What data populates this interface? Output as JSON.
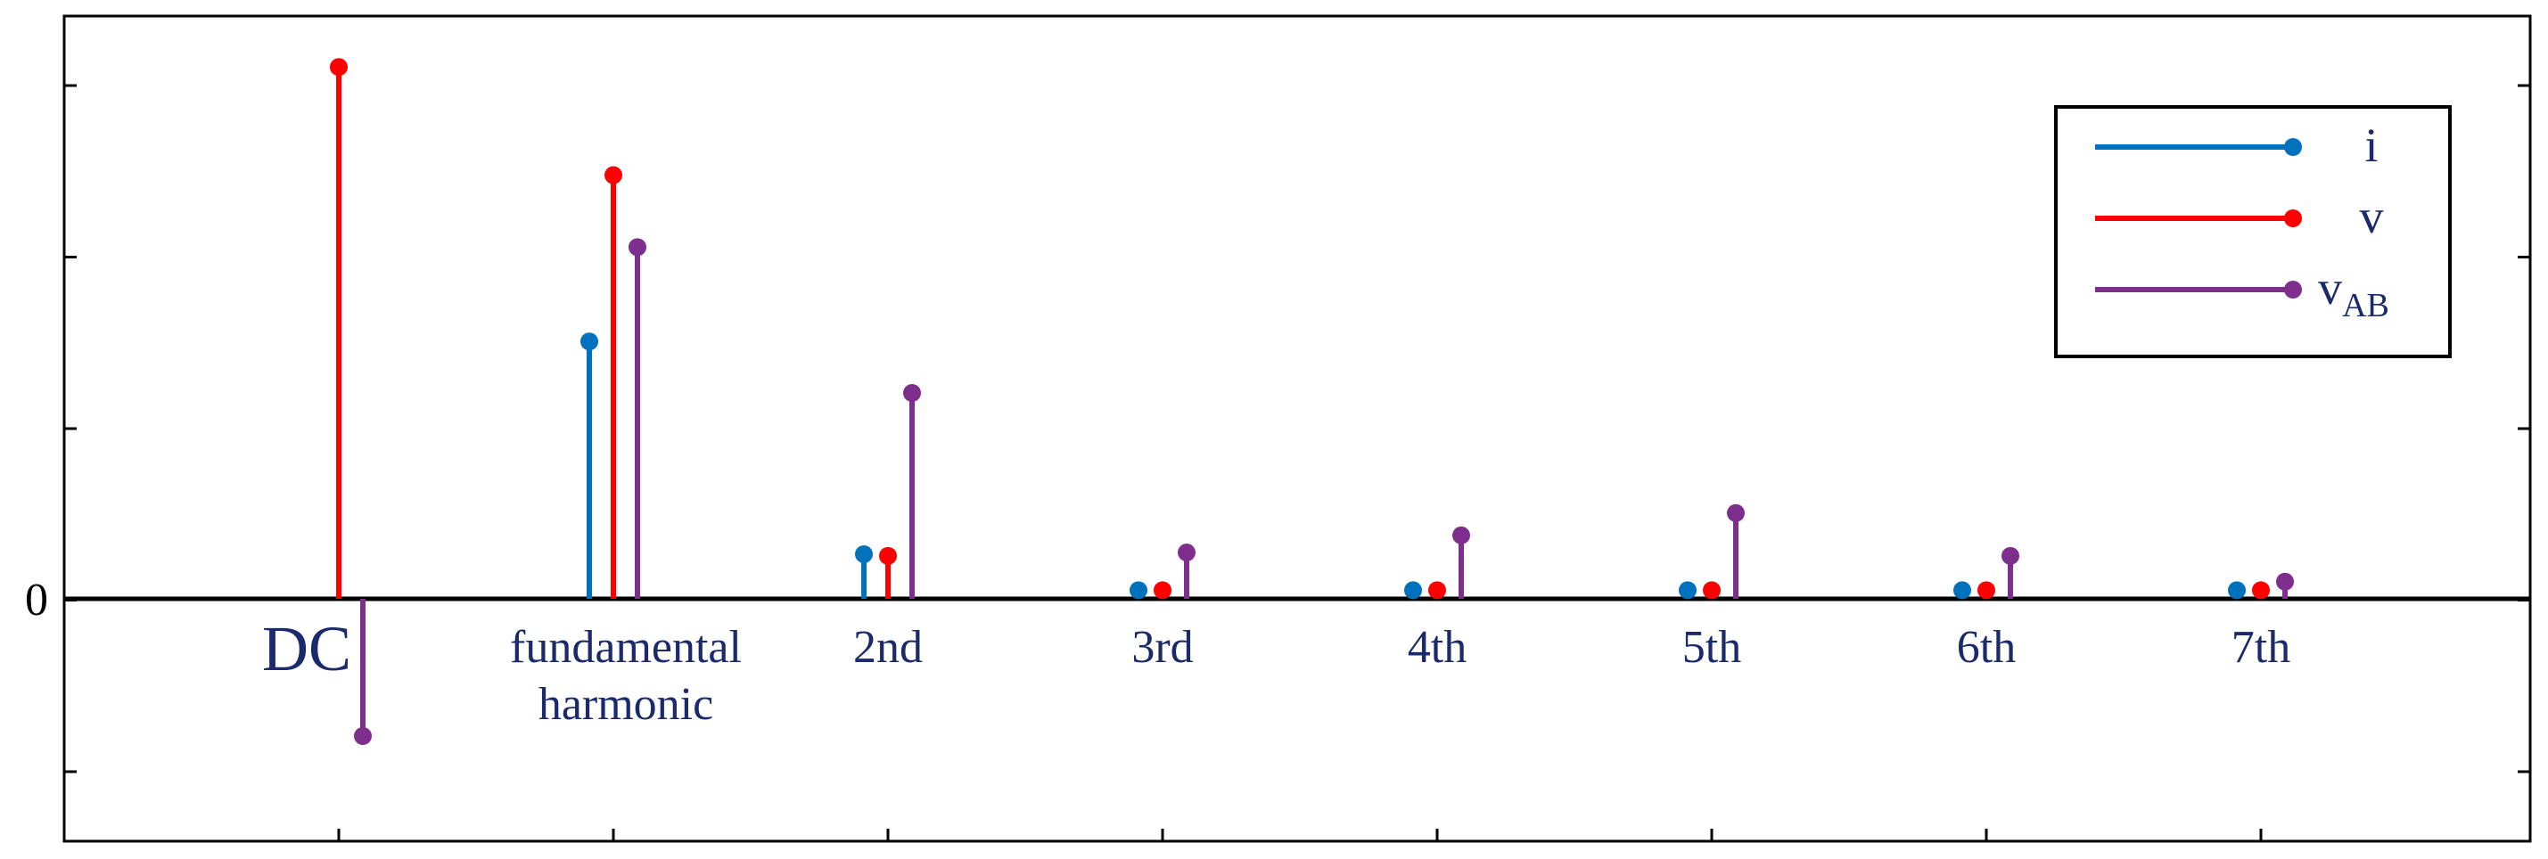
{
  "chart_data": {
    "type": "stem",
    "categories": [
      "DC",
      "fundamental\nharmonic",
      "2nd",
      "3rd",
      "4th",
      "5th",
      "6th",
      "7th"
    ],
    "y_zero_label": "0",
    "ylim": [
      -0.7,
      2.75
    ],
    "series": [
      {
        "name": "i",
        "color": "#0072BD",
        "values": [
          null,
          1.5,
          0.26,
          0.05,
          0.05,
          0.05,
          0.05,
          0.05
        ]
      },
      {
        "name": "v",
        "color": "#FF0000",
        "values": [
          3.1,
          2.47,
          0.25,
          0.05,
          0.05,
          0.05,
          0.05,
          0.05
        ]
      },
      {
        "name": "v",
        "subscript": "AB",
        "color": "#7E2F8E",
        "values": [
          -0.8,
          2.05,
          1.2,
          0.27,
          0.37,
          0.5,
          0.25,
          0.1
        ]
      }
    ],
    "legend": {
      "position": "top-right"
    },
    "grid": false
  }
}
